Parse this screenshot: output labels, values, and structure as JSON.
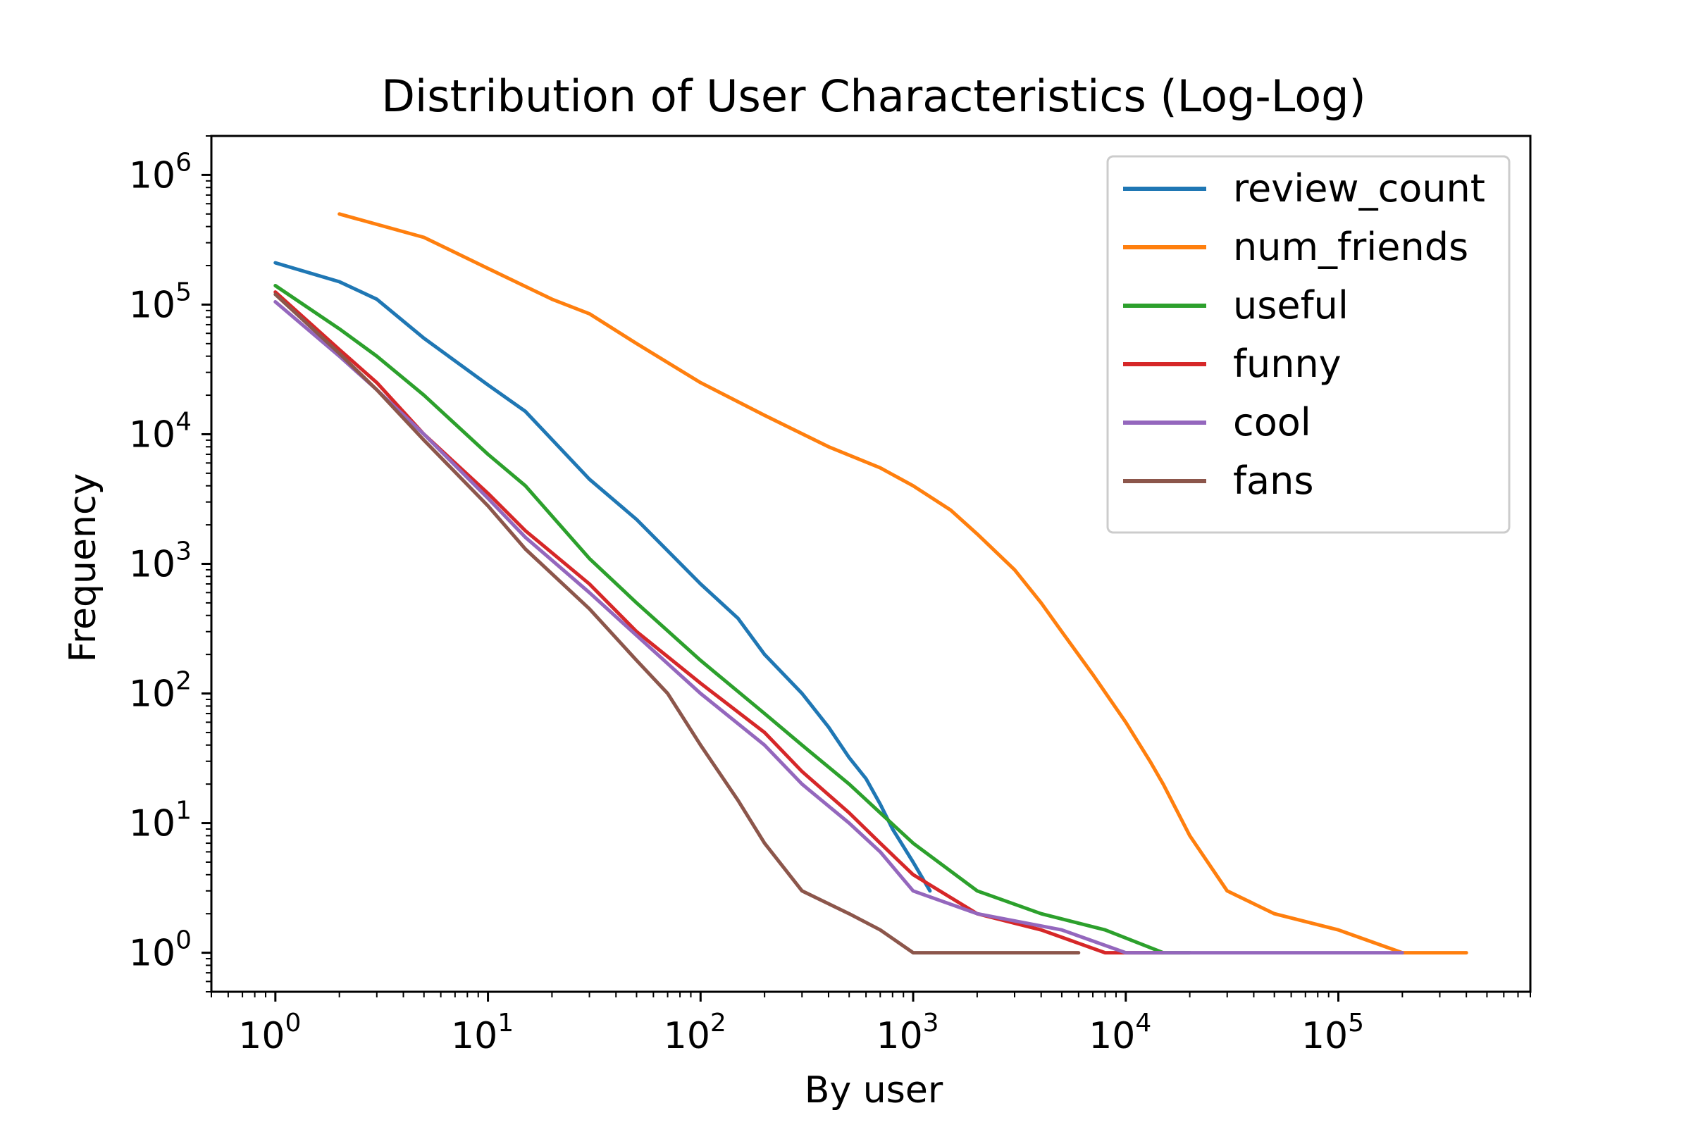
{
  "chart_data": {
    "type": "line",
    "title": "Distribution of User Characteristics (Log-Log)",
    "xlabel": "By user",
    "ylabel": "Frequency",
    "xscale": "log",
    "yscale": "log",
    "xlim": [
      0.5,
      800000
    ],
    "ylim": [
      0.5,
      2000000
    ],
    "xticks": [
      {
        "base": "10",
        "exp": "0",
        "value": 1
      },
      {
        "base": "10",
        "exp": "1",
        "value": 10
      },
      {
        "base": "10",
        "exp": "2",
        "value": 100
      },
      {
        "base": "10",
        "exp": "3",
        "value": 1000
      },
      {
        "base": "10",
        "exp": "4",
        "value": 10000
      },
      {
        "base": "10",
        "exp": "5",
        "value": 100000
      }
    ],
    "yticks": [
      {
        "base": "10",
        "exp": "0",
        "value": 1
      },
      {
        "base": "10",
        "exp": "1",
        "value": 10
      },
      {
        "base": "10",
        "exp": "2",
        "value": 100
      },
      {
        "base": "10",
        "exp": "3",
        "value": 1000
      },
      {
        "base": "10",
        "exp": "4",
        "value": 10000
      },
      {
        "base": "10",
        "exp": "5",
        "value": 100000
      },
      {
        "base": "10",
        "exp": "6",
        "value": 1000000
      }
    ],
    "grid": false,
    "legend_position": "top-right",
    "series": [
      {
        "name": "review_count",
        "color": "#1f77b4",
        "x": [
          1,
          2,
          3,
          5,
          10,
          15,
          30,
          50,
          100,
          150,
          200,
          300,
          400,
          500,
          600,
          700,
          800,
          1000,
          1200
        ],
        "y": [
          210000,
          150000,
          110000,
          55000,
          24000,
          15000,
          4500,
          2200,
          700,
          380,
          200,
          100,
          55,
          32,
          22,
          14,
          9,
          5,
          3
        ]
      },
      {
        "name": "num_friends",
        "color": "#ff7f0e",
        "x": [
          2,
          5,
          10,
          20,
          30,
          50,
          100,
          200,
          400,
          700,
          1000,
          1500,
          2000,
          3000,
          4000,
          5000,
          7000,
          10000,
          13000,
          15000,
          20000,
          30000,
          50000,
          100000,
          200000,
          400000
        ],
        "y": [
          500000,
          330000,
          190000,
          110000,
          85000,
          50000,
          25000,
          14000,
          8000,
          5500,
          4000,
          2600,
          1700,
          900,
          500,
          300,
          140,
          60,
          30,
          20,
          8,
          3,
          2,
          1.5,
          1,
          1
        ]
      },
      {
        "name": "useful",
        "color": "#2ca02c",
        "x": [
          1,
          2,
          3,
          5,
          10,
          15,
          30,
          50,
          100,
          200,
          300,
          500,
          700,
          1000,
          2000,
          4000,
          8000,
          15000,
          20000
        ],
        "y": [
          140000,
          65000,
          40000,
          20000,
          7000,
          4000,
          1100,
          500,
          180,
          70,
          40,
          20,
          12,
          7,
          3,
          2,
          1.5,
          1,
          1
        ]
      },
      {
        "name": "funny",
        "color": "#d62728",
        "x": [
          1,
          2,
          3,
          5,
          10,
          15,
          30,
          50,
          100,
          200,
          300,
          500,
          700,
          1000,
          2000,
          4000,
          8000,
          15000
        ],
        "y": [
          125000,
          45000,
          25000,
          10000,
          3500,
          1800,
          700,
          300,
          120,
          50,
          25,
          12,
          7,
          4,
          2,
          1.5,
          1,
          1
        ]
      },
      {
        "name": "cool",
        "color": "#9467bd",
        "x": [
          1,
          2,
          3,
          5,
          10,
          15,
          30,
          50,
          100,
          200,
          300,
          500,
          700,
          1000,
          2000,
          5000,
          10000,
          50000,
          200000
        ],
        "y": [
          105000,
          40000,
          22000,
          10000,
          3200,
          1600,
          600,
          280,
          100,
          40,
          20,
          10,
          6,
          3,
          2,
          1.5,
          1,
          1,
          1
        ]
      },
      {
        "name": "fans",
        "color": "#8c564b",
        "x": [
          1,
          2,
          3,
          5,
          10,
          15,
          30,
          50,
          70,
          100,
          150,
          200,
          300,
          500,
          700,
          1000,
          2000,
          6000
        ],
        "y": [
          120000,
          42000,
          22000,
          9000,
          2800,
          1300,
          450,
          180,
          100,
          40,
          15,
          7,
          3,
          2,
          1.5,
          1,
          1,
          1
        ]
      }
    ]
  }
}
